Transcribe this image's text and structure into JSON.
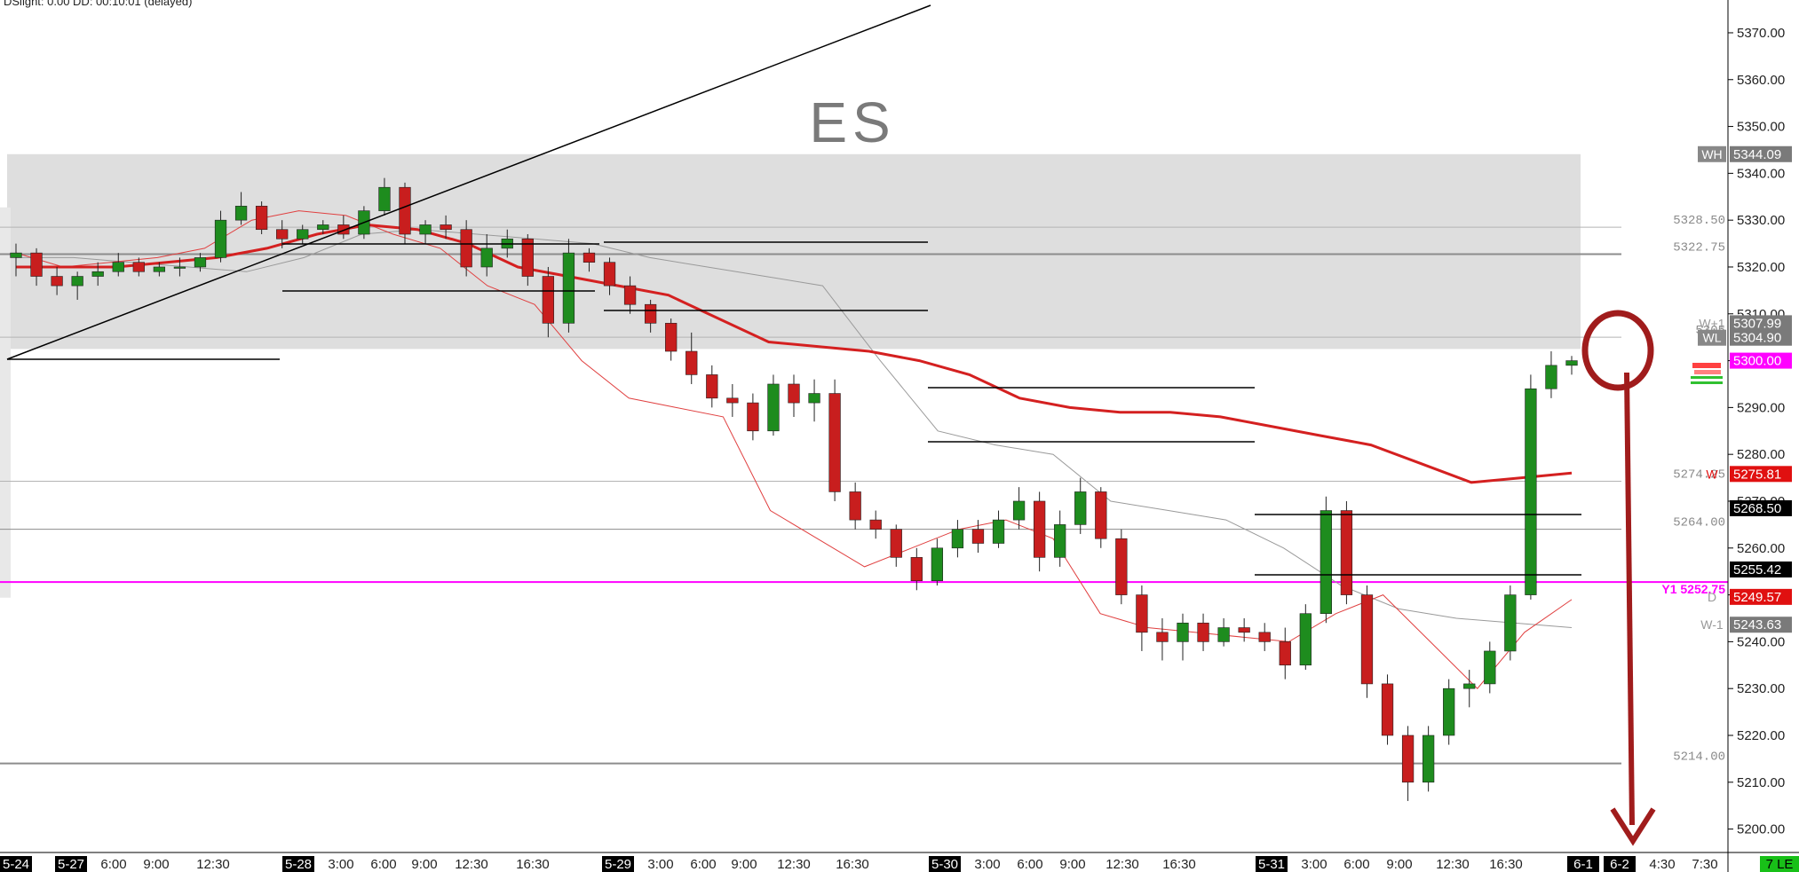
{
  "status_text": "DSlight: 0.00 DD: 00:10:01 (delayed)",
  "colors": {
    "up": "#1e8c1e",
    "down": "#c81e1e",
    "vwap": "#d42020",
    "magenta": "#ff00ff",
    "zone": "#dedede",
    "annotation": "#a01c1c"
  },
  "chart_data": {
    "type": "candlestick",
    "title": "ES",
    "ylim": [
      5195,
      5377
    ],
    "y_ticks": [
      "5370.00",
      "5360.00",
      "5350.00",
      "5340.00",
      "5330.00",
      "5320.00",
      "5310.00",
      "5300.00",
      "5290.00",
      "5280.00",
      "5270.00",
      "5260.00",
      "5250.00",
      "5240.00",
      "5230.00",
      "5220.00",
      "5210.00",
      "5200.00"
    ],
    "x_ticks": [
      {
        "label": "5-24",
        "hl": true
      },
      {
        "label": "5-27",
        "hl": true
      },
      {
        "label": "6:00",
        "hl": false
      },
      {
        "label": "9:00",
        "hl": false
      },
      {
        "label": "12:30",
        "hl": false
      },
      {
        "label": "5-28",
        "hl": true
      },
      {
        "label": "3:00",
        "hl": false
      },
      {
        "label": "6:00",
        "hl": false
      },
      {
        "label": "9:00",
        "hl": false
      },
      {
        "label": "12:30",
        "hl": false
      },
      {
        "label": "16:30",
        "hl": false
      },
      {
        "label": "5-29",
        "hl": true
      },
      {
        "label": "3:00",
        "hl": false
      },
      {
        "label": "6:00",
        "hl": false
      },
      {
        "label": "9:00",
        "hl": false
      },
      {
        "label": "12:30",
        "hl": false
      },
      {
        "label": "16:30",
        "hl": false
      },
      {
        "label": "5-30",
        "hl": true
      },
      {
        "label": "3:00",
        "hl": false
      },
      {
        "label": "6:00",
        "hl": false
      },
      {
        "label": "9:00",
        "hl": false
      },
      {
        "label": "12:30",
        "hl": false
      },
      {
        "label": "16:30",
        "hl": false
      },
      {
        "label": "5-31",
        "hl": true
      },
      {
        "label": "3:00",
        "hl": false
      },
      {
        "label": "6:00",
        "hl": false
      },
      {
        "label": "9:00",
        "hl": false
      },
      {
        "label": "12:30",
        "hl": false
      },
      {
        "label": "16:30",
        "hl": false
      },
      {
        "label": "6-1",
        "hl": true
      },
      {
        "label": "6-2",
        "hl": true
      },
      {
        "label": "4:30",
        "hl": false
      },
      {
        "label": "7:30",
        "hl": false
      }
    ],
    "corner_label": "7 LE",
    "levels": [
      {
        "label": "5328.50",
        "value": 5328.5
      },
      {
        "label": "5322.75",
        "value": 5322.75
      },
      {
        "label": "5305",
        "value": 5305
      },
      {
        "label": "5274.25",
        "value": 5274.25
      },
      {
        "label": "5264.00",
        "value": 5264.0
      },
      {
        "label": "5214.00",
        "value": 5214.0
      }
    ],
    "magenta_level": {
      "label": "Y1  5252.75",
      "value": 5252.75
    },
    "zone": {
      "low": 5302.5,
      "high": 5344.09
    },
    "price_tags": [
      {
        "text": "WH",
        "value": 5344.09,
        "price": "5344.09"
      },
      {
        "text": "W+1",
        "value": 5307.99,
        "price": "5307.99"
      },
      {
        "text": "WL",
        "value": 5304.9,
        "price": "5304.90"
      },
      {
        "text": "",
        "value": 5300.0,
        "price": "5300.00"
      },
      {
        "text": "W",
        "value": 5275.81,
        "price": "5275.81"
      },
      {
        "text": "",
        "value": 5268.5,
        "price": "5268.50"
      },
      {
        "text": "",
        "value": 5255.42,
        "price": "5255.42"
      },
      {
        "text": "D",
        "value": 5249.57,
        "price": "5249.57"
      },
      {
        "text": "W-1",
        "value": 5243.63,
        "price": "5243.63"
      }
    ],
    "candles": [
      {
        "o": 5322,
        "h": 5325,
        "l": 5318,
        "c": 5323
      },
      {
        "o": 5323,
        "h": 5324,
        "l": 5316,
        "c": 5318
      },
      {
        "o": 5318,
        "h": 5320,
        "l": 5314,
        "c": 5316
      },
      {
        "o": 5316,
        "h": 5319,
        "l": 5313,
        "c": 5318
      },
      {
        "o": 5318,
        "h": 5321,
        "l": 5316,
        "c": 5319
      },
      {
        "o": 5319,
        "h": 5323,
        "l": 5318,
        "c": 5321
      },
      {
        "o": 5321,
        "h": 5322,
        "l": 5318,
        "c": 5319
      },
      {
        "o": 5319,
        "h": 5321,
        "l": 5318,
        "c": 5320
      },
      {
        "o": 5320,
        "h": 5322,
        "l": 5318,
        "c": 5320
      },
      {
        "o": 5320,
        "h": 5323,
        "l": 5319,
        "c": 5322
      },
      {
        "o": 5322,
        "h": 5332,
        "l": 5321,
        "c": 5330
      },
      {
        "o": 5330,
        "h": 5336,
        "l": 5329,
        "c": 5333
      },
      {
        "o": 5333,
        "h": 5334,
        "l": 5327,
        "c": 5328
      },
      {
        "o": 5328,
        "h": 5330,
        "l": 5324,
        "c": 5326
      },
      {
        "o": 5326,
        "h": 5329,
        "l": 5325,
        "c": 5328
      },
      {
        "o": 5328,
        "h": 5330,
        "l": 5327,
        "c": 5329
      },
      {
        "o": 5329,
        "h": 5331,
        "l": 5326,
        "c": 5327
      },
      {
        "o": 5327,
        "h": 5333,
        "l": 5326,
        "c": 5332
      },
      {
        "o": 5332,
        "h": 5339,
        "l": 5331,
        "c": 5337
      },
      {
        "o": 5337,
        "h": 5338,
        "l": 5325,
        "c": 5327
      },
      {
        "o": 5327,
        "h": 5330,
        "l": 5325,
        "c": 5329
      },
      {
        "o": 5329,
        "h": 5331,
        "l": 5326,
        "c": 5328
      },
      {
        "o": 5328,
        "h": 5330,
        "l": 5318,
        "c": 5320
      },
      {
        "o": 5320,
        "h": 5327,
        "l": 5318,
        "c": 5324
      },
      {
        "o": 5324,
        "h": 5328,
        "l": 5322,
        "c": 5326
      },
      {
        "o": 5326,
        "h": 5327,
        "l": 5316,
        "c": 5318
      },
      {
        "o": 5318,
        "h": 5320,
        "l": 5305,
        "c": 5308
      },
      {
        "o": 5308,
        "h": 5326,
        "l": 5306,
        "c": 5323
      },
      {
        "o": 5323,
        "h": 5324,
        "l": 5319,
        "c": 5321
      },
      {
        "o": 5321,
        "h": 5322,
        "l": 5314,
        "c": 5316
      },
      {
        "o": 5316,
        "h": 5318,
        "l": 5310,
        "c": 5312
      },
      {
        "o": 5312,
        "h": 5313,
        "l": 5306,
        "c": 5308
      },
      {
        "o": 5308,
        "h": 5309,
        "l": 5300,
        "c": 5302
      },
      {
        "o": 5302,
        "h": 5306,
        "l": 5295,
        "c": 5297
      },
      {
        "o": 5297,
        "h": 5299,
        "l": 5290,
        "c": 5292
      },
      {
        "o": 5292,
        "h": 5295,
        "l": 5288,
        "c": 5291
      },
      {
        "o": 5291,
        "h": 5293,
        "l": 5283,
        "c": 5285
      },
      {
        "o": 5285,
        "h": 5297,
        "l": 5284,
        "c": 5295
      },
      {
        "o": 5295,
        "h": 5297,
        "l": 5288,
        "c": 5291
      },
      {
        "o": 5291,
        "h": 5296,
        "l": 5287,
        "c": 5293
      },
      {
        "o": 5293,
        "h": 5296,
        "l": 5270,
        "c": 5272
      },
      {
        "o": 5272,
        "h": 5274,
        "l": 5264,
        "c": 5266
      },
      {
        "o": 5266,
        "h": 5268,
        "l": 5262,
        "c": 5264
      },
      {
        "o": 5264,
        "h": 5265,
        "l": 5256,
        "c": 5258
      },
      {
        "o": 5258,
        "h": 5260,
        "l": 5251,
        "c": 5253
      },
      {
        "o": 5253,
        "h": 5262,
        "l": 5252,
        "c": 5260
      },
      {
        "o": 5260,
        "h": 5266,
        "l": 5258,
        "c": 5264
      },
      {
        "o": 5264,
        "h": 5266,
        "l": 5259,
        "c": 5261
      },
      {
        "o": 5261,
        "h": 5268,
        "l": 5260,
        "c": 5266
      },
      {
        "o": 5266,
        "h": 5273,
        "l": 5264,
        "c": 5270
      },
      {
        "o": 5270,
        "h": 5272,
        "l": 5255,
        "c": 5258
      },
      {
        "o": 5258,
        "h": 5268,
        "l": 5256,
        "c": 5265
      },
      {
        "o": 5265,
        "h": 5275,
        "l": 5263,
        "c": 5272
      },
      {
        "o": 5272,
        "h": 5273,
        "l": 5260,
        "c": 5262
      },
      {
        "o": 5262,
        "h": 5264,
        "l": 5248,
        "c": 5250
      },
      {
        "o": 5250,
        "h": 5252,
        "l": 5238,
        "c": 5242
      },
      {
        "o": 5242,
        "h": 5245,
        "l": 5236,
        "c": 5240
      },
      {
        "o": 5240,
        "h": 5246,
        "l": 5236,
        "c": 5244
      },
      {
        "o": 5244,
        "h": 5246,
        "l": 5238,
        "c": 5240
      },
      {
        "o": 5240,
        "h": 5245,
        "l": 5239,
        "c": 5243
      },
      {
        "o": 5243,
        "h": 5245,
        "l": 5240,
        "c": 5242
      },
      {
        "o": 5242,
        "h": 5244,
        "l": 5238,
        "c": 5240
      },
      {
        "o": 5240,
        "h": 5243,
        "l": 5232,
        "c": 5235
      },
      {
        "o": 5235,
        "h": 5248,
        "l": 5234,
        "c": 5246
      },
      {
        "o": 5246,
        "h": 5271,
        "l": 5244,
        "c": 5268
      },
      {
        "o": 5268,
        "h": 5270,
        "l": 5248,
        "c": 5250
      },
      {
        "o": 5250,
        "h": 5252,
        "l": 5228,
        "c": 5231
      },
      {
        "o": 5231,
        "h": 5233,
        "l": 5218,
        "c": 5220
      },
      {
        "o": 5220,
        "h": 5222,
        "l": 5206,
        "c": 5210
      },
      {
        "o": 5210,
        "h": 5222,
        "l": 5208,
        "c": 5220
      },
      {
        "o": 5220,
        "h": 5232,
        "l": 5218,
        "c": 5230
      },
      {
        "o": 5230,
        "h": 5234,
        "l": 5226,
        "c": 5231
      },
      {
        "o": 5231,
        "h": 5240,
        "l": 5229,
        "c": 5238
      },
      {
        "o": 5238,
        "h": 5252,
        "l": 5236,
        "c": 5250
      },
      {
        "o": 5250,
        "h": 5297,
        "l": 5249,
        "c": 5294
      },
      {
        "o": 5294,
        "h": 5302,
        "l": 5292,
        "c": 5299
      },
      {
        "o": 5299,
        "h": 5301,
        "l": 5297,
        "c": 5300
      }
    ],
    "vwap_series": [
      5320,
      5320,
      5320,
      5321,
      5322,
      5324,
      5327,
      5329,
      5328,
      5325,
      5320,
      5318,
      5316,
      5314,
      5309,
      5304,
      5303,
      5302,
      5300,
      5297,
      5292,
      5290,
      5289,
      5289,
      5288,
      5286,
      5284,
      5282,
      5278,
      5274,
      5275,
      5276
    ],
    "light_series": [
      5323,
      5320,
      5321,
      5322,
      5324,
      5330,
      5332,
      5331,
      5327,
      5324,
      5316,
      5312,
      5300,
      5292,
      5290,
      5288,
      5268,
      5262,
      5256,
      5260,
      5264,
      5266,
      5262,
      5246,
      5243,
      5242,
      5241,
      5240,
      5246,
      5250,
      5240,
      5230,
      5242,
      5249
    ],
    "gray_series": [
      5322,
      5322,
      5321,
      5320,
      5319,
      5322,
      5327,
      5328,
      5327,
      5326,
      5325,
      5322,
      5320,
      5318,
      5316,
      5300,
      5285,
      5282,
      5280,
      5270,
      5268,
      5266,
      5260,
      5252,
      5247,
      5245,
      5244,
      5243
    ]
  }
}
